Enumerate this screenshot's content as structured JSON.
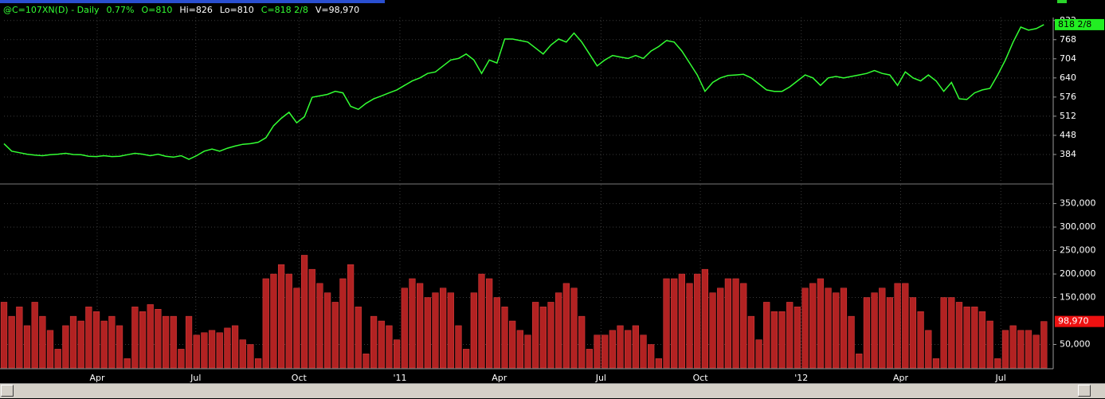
{
  "header": {
    "items": [
      "@C=107XN(D) - Daily",
      "0.77%",
      "O=810",
      "Hi=826",
      "Lo=810",
      "C=818 2/8",
      "V=98,970"
    ]
  },
  "chart_data": [
    {
      "type": "line",
      "color": "#33ff33",
      "x": [
        0,
        1,
        2,
        3,
        4,
        5,
        6,
        7,
        8,
        9,
        10,
        11,
        12,
        13,
        14,
        15,
        16,
        17,
        18,
        19,
        20,
        21,
        22,
        23,
        24,
        25,
        26,
        27,
        28,
        29,
        30,
        31,
        32,
        33,
        34,
        35,
        36,
        37,
        38,
        39,
        40,
        41,
        42,
        43,
        44,
        45,
        46,
        47,
        48,
        49,
        50,
        51,
        52,
        53,
        54,
        55,
        56,
        57,
        58,
        59,
        60,
        61,
        62,
        63,
        64,
        65,
        66,
        67,
        68,
        69,
        70,
        71,
        72,
        73,
        74,
        75,
        76,
        77,
        78,
        79,
        80,
        81,
        82,
        83,
        84,
        85,
        86,
        87,
        88,
        89,
        90,
        91,
        92,
        93,
        94,
        95,
        96,
        97,
        98,
        99,
        100,
        101,
        102,
        103,
        104,
        105,
        106,
        107,
        108,
        109,
        110,
        111,
        112,
        113,
        114,
        115,
        116,
        117,
        118,
        119,
        120,
        121,
        122,
        123,
        124,
        125,
        126,
        127,
        128,
        129,
        130,
        131,
        132,
        133,
        134,
        135
      ],
      "values": [
        420,
        395,
        390,
        385,
        382,
        380,
        383,
        385,
        388,
        384,
        383,
        378,
        377,
        380,
        377,
        378,
        383,
        388,
        385,
        380,
        385,
        378,
        375,
        380,
        368,
        380,
        395,
        402,
        395,
        405,
        412,
        418,
        420,
        425,
        440,
        480,
        505,
        525,
        490,
        510,
        575,
        580,
        585,
        595,
        590,
        545,
        535,
        555,
        570,
        580,
        590,
        600,
        615,
        630,
        640,
        655,
        660,
        680,
        700,
        705,
        720,
        700,
        655,
        700,
        690,
        770,
        770,
        765,
        760,
        740,
        720,
        750,
        770,
        760,
        790,
        760,
        720,
        680,
        700,
        715,
        710,
        705,
        715,
        705,
        730,
        745,
        765,
        760,
        730,
        690,
        650,
        595,
        625,
        640,
        648,
        650,
        652,
        640,
        620,
        600,
        595,
        595,
        610,
        630,
        650,
        640,
        615,
        640,
        645,
        640,
        645,
        650,
        655,
        665,
        655,
        650,
        615,
        660,
        640,
        630,
        650,
        630,
        595,
        625,
        570,
        568,
        590,
        600,
        605,
        650,
        700,
        760,
        810,
        800,
        805,
        818.25
      ],
      "last_label": "818 2/8",
      "xlim": [
        0,
        136
      ],
      "ylim": [
        288,
        842
      ],
      "yticks": [
        384,
        448,
        512,
        576,
        640,
        704,
        768,
        832
      ]
    },
    {
      "type": "bar",
      "color": "#b22222",
      "x": [
        0,
        1,
        2,
        3,
        4,
        5,
        6,
        7,
        8,
        9,
        10,
        11,
        12,
        13,
        14,
        15,
        16,
        17,
        18,
        19,
        20,
        21,
        22,
        23,
        24,
        25,
        26,
        27,
        28,
        29,
        30,
        31,
        32,
        33,
        34,
        35,
        36,
        37,
        38,
        39,
        40,
        41,
        42,
        43,
        44,
        45,
        46,
        47,
        48,
        49,
        50,
        51,
        52,
        53,
        54,
        55,
        56,
        57,
        58,
        59,
        60,
        61,
        62,
        63,
        64,
        65,
        66,
        67,
        68,
        69,
        70,
        71,
        72,
        73,
        74,
        75,
        76,
        77,
        78,
        79,
        80,
        81,
        82,
        83,
        84,
        85,
        86,
        87,
        88,
        89,
        90,
        91,
        92,
        93,
        94,
        95,
        96,
        97,
        98,
        99,
        100,
        101,
        102,
        103,
        104,
        105,
        106,
        107,
        108,
        109,
        110,
        111,
        112,
        113,
        114,
        115,
        116,
        117,
        118,
        119,
        120,
        121,
        122,
        123,
        124,
        125,
        126,
        127,
        128,
        129,
        130,
        131,
        132,
        133,
        134,
        135
      ],
      "values": [
        140000,
        110000,
        130000,
        90000,
        140000,
        110000,
        80000,
        40000,
        90000,
        110000,
        100000,
        130000,
        120000,
        100000,
        110000,
        90000,
        20000,
        130000,
        120000,
        135000,
        125000,
        110000,
        110000,
        40000,
        110000,
        70000,
        75000,
        80000,
        75000,
        85000,
        90000,
        60000,
        50000,
        20000,
        190000,
        200000,
        220000,
        200000,
        170000,
        240000,
        210000,
        180000,
        160000,
        140000,
        190000,
        220000,
        130000,
        30000,
        110000,
        100000,
        90000,
        60000,
        170000,
        190000,
        180000,
        150000,
        160000,
        170000,
        160000,
        90000,
        40000,
        160000,
        200000,
        190000,
        150000,
        130000,
        100000,
        80000,
        70000,
        140000,
        130000,
        140000,
        160000,
        180000,
        170000,
        110000,
        40000,
        70000,
        70000,
        80000,
        90000,
        80000,
        90000,
        70000,
        50000,
        20000,
        190000,
        190000,
        200000,
        180000,
        200000,
        210000,
        160000,
        170000,
        190000,
        190000,
        180000,
        110000,
        60000,
        140000,
        120000,
        120000,
        140000,
        130000,
        170000,
        180000,
        190000,
        170000,
        160000,
        170000,
        110000,
        30000,
        150000,
        160000,
        170000,
        150000,
        180000,
        180000,
        150000,
        120000,
        80000,
        20000,
        150000,
        150000,
        140000,
        130000,
        130000,
        120000,
        100000,
        20000,
        80000,
        90000,
        80000,
        80000,
        70000,
        98970
      ],
      "last_label": "98,970",
      "xlim": [
        0,
        136
      ],
      "ylim": [
        0,
        390000
      ],
      "yticks": [
        {
          "value": 50000,
          "label": "50,000"
        },
        {
          "value": 150000,
          "label": "150,000"
        },
        {
          "value": 200000,
          "label": "200,000"
        },
        {
          "value": 250000,
          "label": "250,000"
        },
        {
          "value": 300000,
          "label": "300,000"
        },
        {
          "value": 350000,
          "label": "350,000"
        }
      ],
      "xticks": [
        {
          "value": 12.1,
          "label": "Apr"
        },
        {
          "value": 24.9,
          "label": "Jul"
        },
        {
          "value": 38.3,
          "label": "Oct"
        },
        {
          "value": 51.4,
          "label": "'11"
        },
        {
          "value": 64.3,
          "label": "Apr"
        },
        {
          "value": 77.5,
          "label": "Jul"
        },
        {
          "value": 90.4,
          "label": "Oct"
        },
        {
          "value": 103.5,
          "label": "'12"
        },
        {
          "value": 116.4,
          "label": "Apr"
        },
        {
          "value": 129.4,
          "label": "Jul"
        }
      ]
    }
  ]
}
